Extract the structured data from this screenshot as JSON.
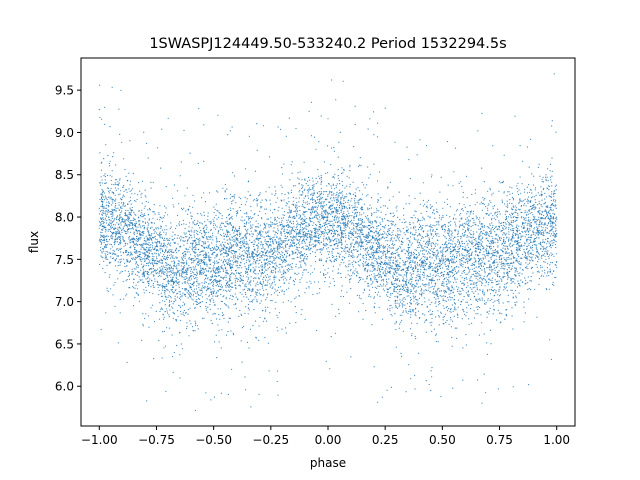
{
  "chart_data": {
    "type": "scatter",
    "title": "1SWASPJ124449.50-533240.2 Period 1532294.5s",
    "xlabel": "phase",
    "ylabel": "flux",
    "xlim": [
      -1.08,
      1.08
    ],
    "ylim": [
      5.53,
      9.88
    ],
    "xticks": [
      -1.0,
      -0.75,
      -0.5,
      -0.25,
      0.0,
      0.25,
      0.5,
      0.75,
      1.0
    ],
    "xtick_labels": [
      "−1.00",
      "−0.75",
      "−0.50",
      "−0.25",
      "0.00",
      "0.25",
      "0.50",
      "0.75",
      "1.00"
    ],
    "yticks": [
      6.0,
      6.5,
      7.0,
      7.5,
      8.0,
      8.5,
      9.0,
      9.5
    ],
    "ytick_labels": [
      "6.0",
      "6.5",
      "7.0",
      "7.5",
      "8.0",
      "8.5",
      "9.0",
      "9.5"
    ],
    "grid": false,
    "series": [
      {
        "color": "#1f77b4",
        "marker_size": 0.6,
        "approx_point_count": 20000,
        "x": [
          -1.0,
          -0.95,
          -0.9,
          -0.85,
          -0.8,
          -0.75,
          -0.7,
          -0.65,
          -0.6,
          -0.55,
          -0.5,
          -0.45,
          -0.4,
          -0.35,
          -0.3,
          -0.25,
          -0.2,
          -0.15,
          -0.1,
          -0.05,
          0.0,
          0.05,
          0.1,
          0.15,
          0.2,
          0.25,
          0.3,
          0.35,
          0.4,
          0.45,
          0.5,
          0.55,
          0.6,
          0.65,
          0.7,
          0.75,
          0.8,
          0.85,
          0.9,
          0.95,
          1.0
        ],
        "y_median": [
          7.95,
          7.95,
          7.85,
          7.75,
          7.6,
          7.55,
          7.4,
          7.35,
          7.45,
          7.5,
          7.4,
          7.45,
          7.55,
          7.55,
          7.55,
          7.6,
          7.65,
          7.75,
          7.85,
          7.9,
          7.95,
          7.95,
          7.85,
          7.75,
          7.6,
          7.55,
          7.4,
          7.35,
          7.45,
          7.5,
          7.4,
          7.45,
          7.55,
          7.55,
          7.55,
          7.6,
          7.65,
          7.75,
          7.85,
          7.9,
          7.95
        ],
        "y_spread": [
          0.3,
          0.3,
          0.3,
          0.3,
          0.3,
          0.3,
          0.35,
          0.35,
          0.35,
          0.35,
          0.35,
          0.35,
          0.35,
          0.35,
          0.35,
          0.35,
          0.35,
          0.35,
          0.3,
          0.3,
          0.3,
          0.3,
          0.3,
          0.3,
          0.3,
          0.3,
          0.35,
          0.35,
          0.35,
          0.35,
          0.35,
          0.35,
          0.35,
          0.35,
          0.35,
          0.35,
          0.35,
          0.35,
          0.3,
          0.3,
          0.3
        ],
        "y_min": 5.7,
        "y_max": 9.7
      }
    ]
  }
}
